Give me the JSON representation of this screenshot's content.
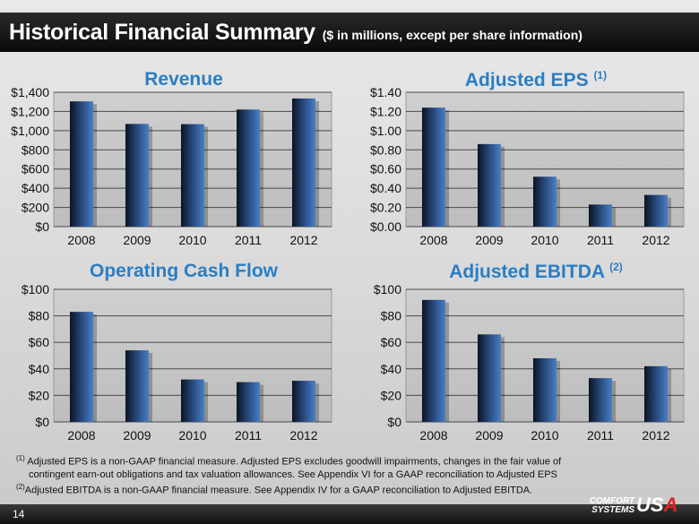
{
  "header": {
    "title": "Historical Financial Summary",
    "subtitle": "($ in millions, except per share information)"
  },
  "chart_data": [
    {
      "type": "bar",
      "title": "Revenue",
      "title_note": "",
      "categories": [
        "2008",
        "2009",
        "2010",
        "2011",
        "2012"
      ],
      "values": [
        1305,
        1070,
        1068,
        1220,
        1335
      ],
      "ylim": [
        0,
        1400
      ],
      "yticks": [
        0,
        200,
        400,
        600,
        800,
        1000,
        1200,
        1400
      ],
      "ytick_labels": [
        "$0",
        "$200",
        "$400",
        "$600",
        "$800",
        "$1,000",
        "$1,200",
        "$1,400"
      ],
      "xlabel": "",
      "ylabel": ""
    },
    {
      "type": "bar",
      "title": "Adjusted EPS",
      "title_note": "(1)",
      "categories": [
        "2008",
        "2009",
        "2010",
        "2011",
        "2012"
      ],
      "values": [
        1.24,
        0.86,
        0.52,
        0.23,
        0.33
      ],
      "ylim": [
        0,
        1.4
      ],
      "yticks": [
        0,
        0.2,
        0.4,
        0.6,
        0.8,
        1.0,
        1.2,
        1.4
      ],
      "ytick_labels": [
        "$0.00",
        "$0.20",
        "$0.40",
        "$0.60",
        "$0.80",
        "$1.00",
        "$1.20",
        "$1.40"
      ],
      "xlabel": "",
      "ylabel": ""
    },
    {
      "type": "bar",
      "title": "Operating Cash Flow",
      "title_note": "",
      "categories": [
        "2008",
        "2009",
        "2010",
        "2011",
        "2012"
      ],
      "values": [
        83,
        54,
        32,
        30,
        31
      ],
      "ylim": [
        0,
        100
      ],
      "yticks": [
        0,
        20,
        40,
        60,
        80,
        100
      ],
      "ytick_labels": [
        "$0",
        "$20",
        "$40",
        "$60",
        "$80",
        "$100"
      ],
      "xlabel": "",
      "ylabel": ""
    },
    {
      "type": "bar",
      "title": "Adjusted EBITDA",
      "title_note": "(2)",
      "categories": [
        "2008",
        "2009",
        "2010",
        "2011",
        "2012"
      ],
      "values": [
        92,
        66,
        48,
        33,
        42
      ],
      "ylim": [
        0,
        100
      ],
      "yticks": [
        0,
        20,
        40,
        60,
        80,
        100
      ],
      "ytick_labels": [
        "$0",
        "$20",
        "$40",
        "$60",
        "$80",
        "$100"
      ],
      "xlabel": "",
      "ylabel": ""
    }
  ],
  "footnotes": {
    "note1_mark": "(1)",
    "note1_line1": "Adjusted EPS is a non-GAAP financial measure.  Adjusted EPS excludes goodwill impairments, changes in the fair value of",
    "note1_line2": "contingent earn-out obligations and tax valuation allowances.  See Appendix VI for a GAAP reconciliation to Adjusted EPS",
    "note2_mark": "(2)",
    "note2_line1": "Adjusted EBITDA is a non-GAAP financial measure. See Appendix IV for a GAAP reconciliation to Adjusted EBITDA."
  },
  "footer": {
    "page_number": "14",
    "logo_line1": "COMFORT",
    "logo_line2": "SYSTEMS",
    "logo_u": "U",
    "logo_s": "S",
    "logo_a": "A"
  },
  "colors": {
    "title_blue": "#2a7ec4",
    "bar_dark": "#0e1a2e",
    "bar_light": "#3f6fb0",
    "plot_bg": "#c8c8c8"
  }
}
